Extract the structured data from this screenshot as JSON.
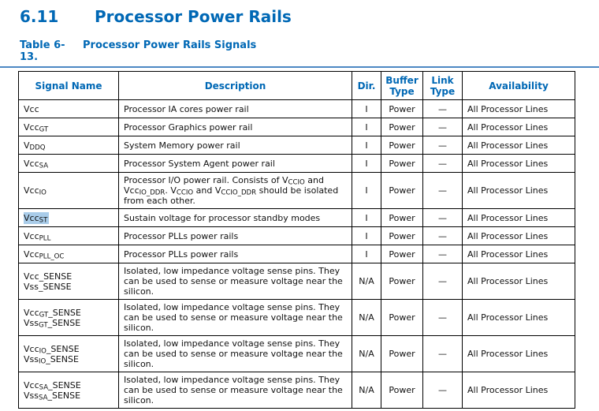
{
  "colors": {
    "accent": "#0068B5",
    "selection_highlight": "#A9CCE9",
    "caption_rule": "#4d88c4"
  },
  "heading": {
    "number": "6.11",
    "title": "Processor Power Rails"
  },
  "caption": {
    "number": "Table 6-13.",
    "title": "Processor Power Rails Signals"
  },
  "table": {
    "columns": [
      "Signal Name",
      "Description",
      "Dir.",
      "Buffer Type",
      "Link Type",
      "Availability"
    ],
    "rows": [
      {
        "signal": [
          "Vcc"
        ],
        "desc": "Processor IA cores power rail",
        "dir": "I",
        "buffer": "Power",
        "link": "—",
        "availability": "All Processor Lines",
        "size": "s",
        "highlight": false
      },
      {
        "signal": [
          "Vcc~GT~"
        ],
        "desc": "Processor Graphics power rail",
        "dir": "I",
        "buffer": "Power",
        "link": "—",
        "availability": "All Processor Lines",
        "size": "s",
        "highlight": false
      },
      {
        "signal": [
          "V~DDQ~"
        ],
        "desc": "System Memory power rail",
        "dir": "I",
        "buffer": "Power",
        "link": "—",
        "availability": "All Processor Lines",
        "size": "s",
        "highlight": false
      },
      {
        "signal": [
          "Vcc~SA~"
        ],
        "desc": "Processor System Agent power rail",
        "dir": "I",
        "buffer": "Power",
        "link": "—",
        "availability": "All Processor Lines",
        "size": "s",
        "highlight": false
      },
      {
        "signal": [
          "Vcc~IO~"
        ],
        "desc": "Processor I/O power rail. Consists of V~CCIO~ and Vcc~IO_DDR~. V~CCIO~ and V~CCIO_DDR~ should be isolated from each other.",
        "dir": "I",
        "buffer": "Power",
        "link": "—",
        "availability": "All Processor Lines",
        "size": "m",
        "highlight": false
      },
      {
        "signal": [
          "Vcc~ST~"
        ],
        "desc": "Sustain voltage for processor standby modes",
        "dir": "I",
        "buffer": "Power",
        "link": "—",
        "availability": "All Processor Lines",
        "size": "s",
        "highlight": true
      },
      {
        "signal": [
          "Vcc~PLL~"
        ],
        "desc": "Processor PLLs power rails",
        "dir": "I",
        "buffer": "Power",
        "link": "—",
        "availability": "All Processor Lines",
        "size": "s",
        "highlight": false
      },
      {
        "signal": [
          "Vcc~PLL_OC~"
        ],
        "desc": "Processor PLLs power rails",
        "dir": "I",
        "buffer": "Power",
        "link": "—",
        "availability": "All Processor Lines",
        "size": "s",
        "highlight": false
      },
      {
        "signal": [
          "Vcc_SENSE",
          "Vss_SENSE"
        ],
        "desc": "Isolated, low impedance voltage sense pins. They can be used to sense or measure voltage near the silicon.",
        "dir": "N/A",
        "buffer": "Power",
        "link": "—",
        "availability": "All Processor Lines",
        "size": "l",
        "highlight": false
      },
      {
        "signal": [
          "Vcc~GT~_SENSE",
          "Vss~GT~_SENSE"
        ],
        "desc": "Isolated, low impedance voltage sense pins. They can be used to sense or measure voltage near the silicon.",
        "dir": "N/A",
        "buffer": "Power",
        "link": "—",
        "availability": "All Processor Lines",
        "size": "l",
        "highlight": false
      },
      {
        "signal": [
          "Vcc~IO~_SENSE",
          "Vss~IO~_SENSE"
        ],
        "desc": "Isolated, low impedance voltage sense pins. They can be used to sense or measure voltage near the silicon.",
        "dir": "N/A",
        "buffer": "Power",
        "link": "—",
        "availability": "All Processor Lines",
        "size": "l",
        "highlight": false
      },
      {
        "signal": [
          "Vcc~SA~_SENSE",
          "Vss~SA~_SENSE"
        ],
        "desc": "Isolated, low impedance voltage sense pins. They can be used to sense or measure voltage near the silicon.",
        "dir": "N/A",
        "buffer": "Power",
        "link": "—",
        "availability": "All Processor Lines",
        "size": "l",
        "highlight": false
      }
    ]
  }
}
